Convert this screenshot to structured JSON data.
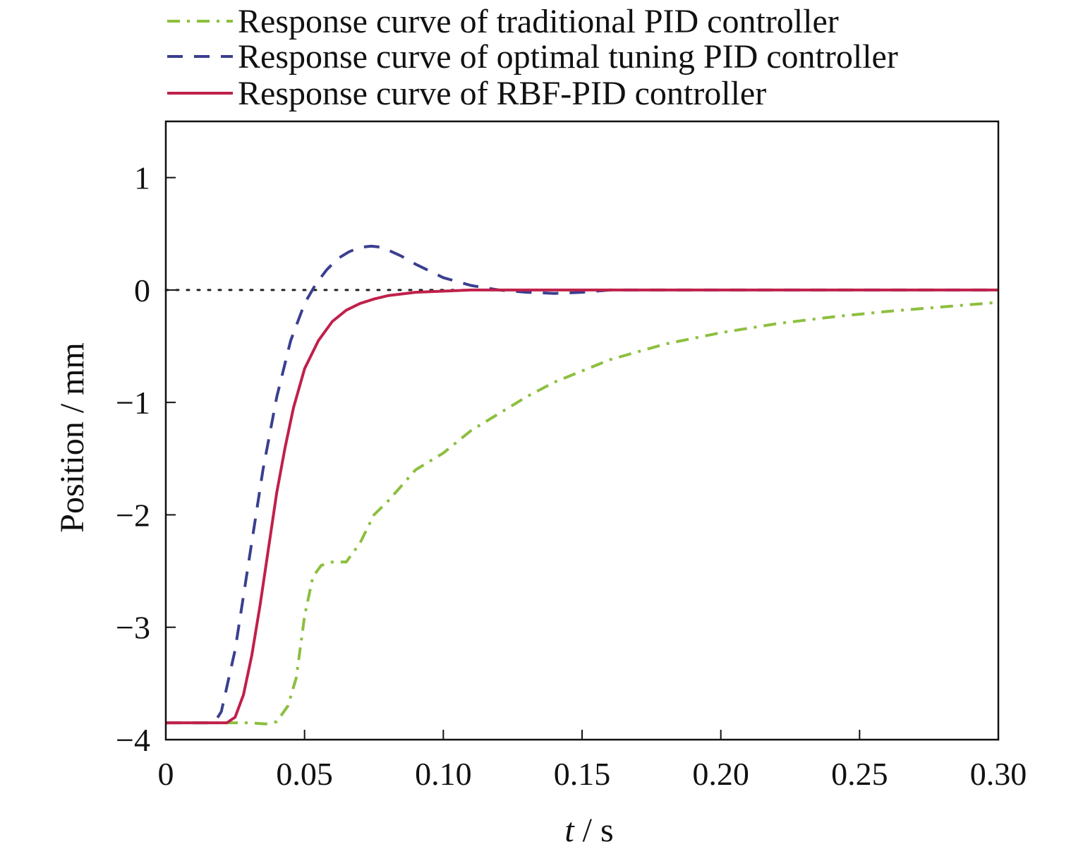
{
  "chart_data": {
    "type": "line",
    "xlabel_italic": "t",
    "xlabel_unit": " / s",
    "ylabel": "Position / mm",
    "xlim": [
      0,
      0.3
    ],
    "ylim": [
      -4,
      1.5
    ],
    "xticks": [
      0,
      0.05,
      0.1,
      0.15,
      0.2,
      0.25,
      0.3
    ],
    "xtick_labels": [
      "0",
      "0.05",
      "0.10",
      "0.15",
      "0.20",
      "0.25",
      "0.30"
    ],
    "yticks": [
      -4,
      -3,
      -2,
      -1,
      0,
      1
    ],
    "ytick_labels": [
      "−4",
      "−3",
      "−2",
      "−1",
      "0",
      "1"
    ],
    "reference_line": {
      "y": 0,
      "style": "dotted",
      "color": "#222222"
    },
    "legend_position": "top",
    "series": [
      {
        "name": "Response curve of traditional PID controller",
        "color": "#8cbf3f",
        "style": "dashdot",
        "x": [
          0,
          0.02,
          0.03,
          0.036,
          0.04,
          0.044,
          0.047,
          0.05,
          0.053,
          0.056,
          0.06,
          0.065,
          0.07,
          0.075,
          0.08,
          0.09,
          0.1,
          0.11,
          0.12,
          0.13,
          0.14,
          0.15,
          0.16,
          0.17,
          0.18,
          0.2,
          0.22,
          0.24,
          0.26,
          0.28,
          0.3
        ],
        "y": [
          -3.85,
          -3.85,
          -3.85,
          -3.86,
          -3.84,
          -3.7,
          -3.45,
          -2.9,
          -2.55,
          -2.45,
          -2.42,
          -2.42,
          -2.25,
          -2.0,
          -1.88,
          -1.6,
          -1.45,
          -1.25,
          -1.1,
          -0.95,
          -0.82,
          -0.72,
          -0.62,
          -0.55,
          -0.48,
          -0.38,
          -0.3,
          -0.24,
          -0.19,
          -0.15,
          -0.11
        ]
      },
      {
        "name": "Response curve of optimal tuning PID controller",
        "color": "#3a3f8f",
        "style": "dashed",
        "x": [
          0,
          0.015,
          0.018,
          0.02,
          0.025,
          0.03,
          0.035,
          0.04,
          0.045,
          0.05,
          0.054,
          0.058,
          0.062,
          0.066,
          0.07,
          0.074,
          0.078,
          0.085,
          0.09,
          0.1,
          0.11,
          0.12,
          0.13,
          0.14,
          0.15,
          0.16,
          0.18,
          0.2,
          0.25,
          0.3
        ],
        "y": [
          -3.85,
          -3.85,
          -3.83,
          -3.75,
          -3.2,
          -2.4,
          -1.6,
          -0.95,
          -0.45,
          -0.12,
          0.05,
          0.18,
          0.28,
          0.34,
          0.38,
          0.39,
          0.38,
          0.3,
          0.23,
          0.11,
          0.04,
          0.0,
          -0.02,
          -0.03,
          -0.02,
          0.0,
          0.0,
          0.0,
          0.0,
          0.0
        ]
      },
      {
        "name": "Response curve of RBF-PID controller",
        "color": "#c0204a",
        "style": "solid",
        "x": [
          0,
          0.022,
          0.025,
          0.028,
          0.031,
          0.034,
          0.037,
          0.04,
          0.043,
          0.046,
          0.05,
          0.055,
          0.06,
          0.065,
          0.07,
          0.075,
          0.08,
          0.09,
          0.1,
          0.11,
          0.12,
          0.15,
          0.2,
          0.25,
          0.3
        ],
        "y": [
          -3.85,
          -3.85,
          -3.8,
          -3.6,
          -3.25,
          -2.8,
          -2.3,
          -1.8,
          -1.4,
          -1.05,
          -0.7,
          -0.45,
          -0.28,
          -0.18,
          -0.12,
          -0.08,
          -0.05,
          -0.02,
          -0.01,
          0.0,
          0.0,
          0.0,
          0.0,
          0.0,
          0.0
        ]
      }
    ]
  }
}
